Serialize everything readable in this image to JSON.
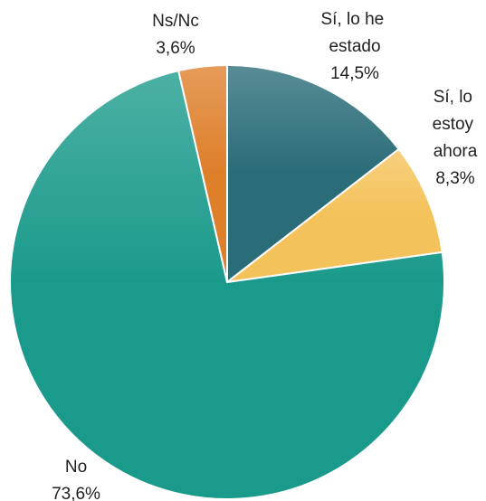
{
  "chart_data": {
    "type": "pie",
    "categories": [
      "Sí, lo he estado",
      "Sí, lo estoy ahora",
      "No",
      "Ns/Nc"
    ],
    "values": [
      14.5,
      8.3,
      73.6,
      3.6
    ],
    "value_labels": [
      "14,5%",
      "8,3%",
      "73,6%",
      "3,6%"
    ],
    "colors": [
      "#2a6c78",
      "#f4c25a",
      "#1a9a8b",
      "#de7f2a"
    ]
  }
}
